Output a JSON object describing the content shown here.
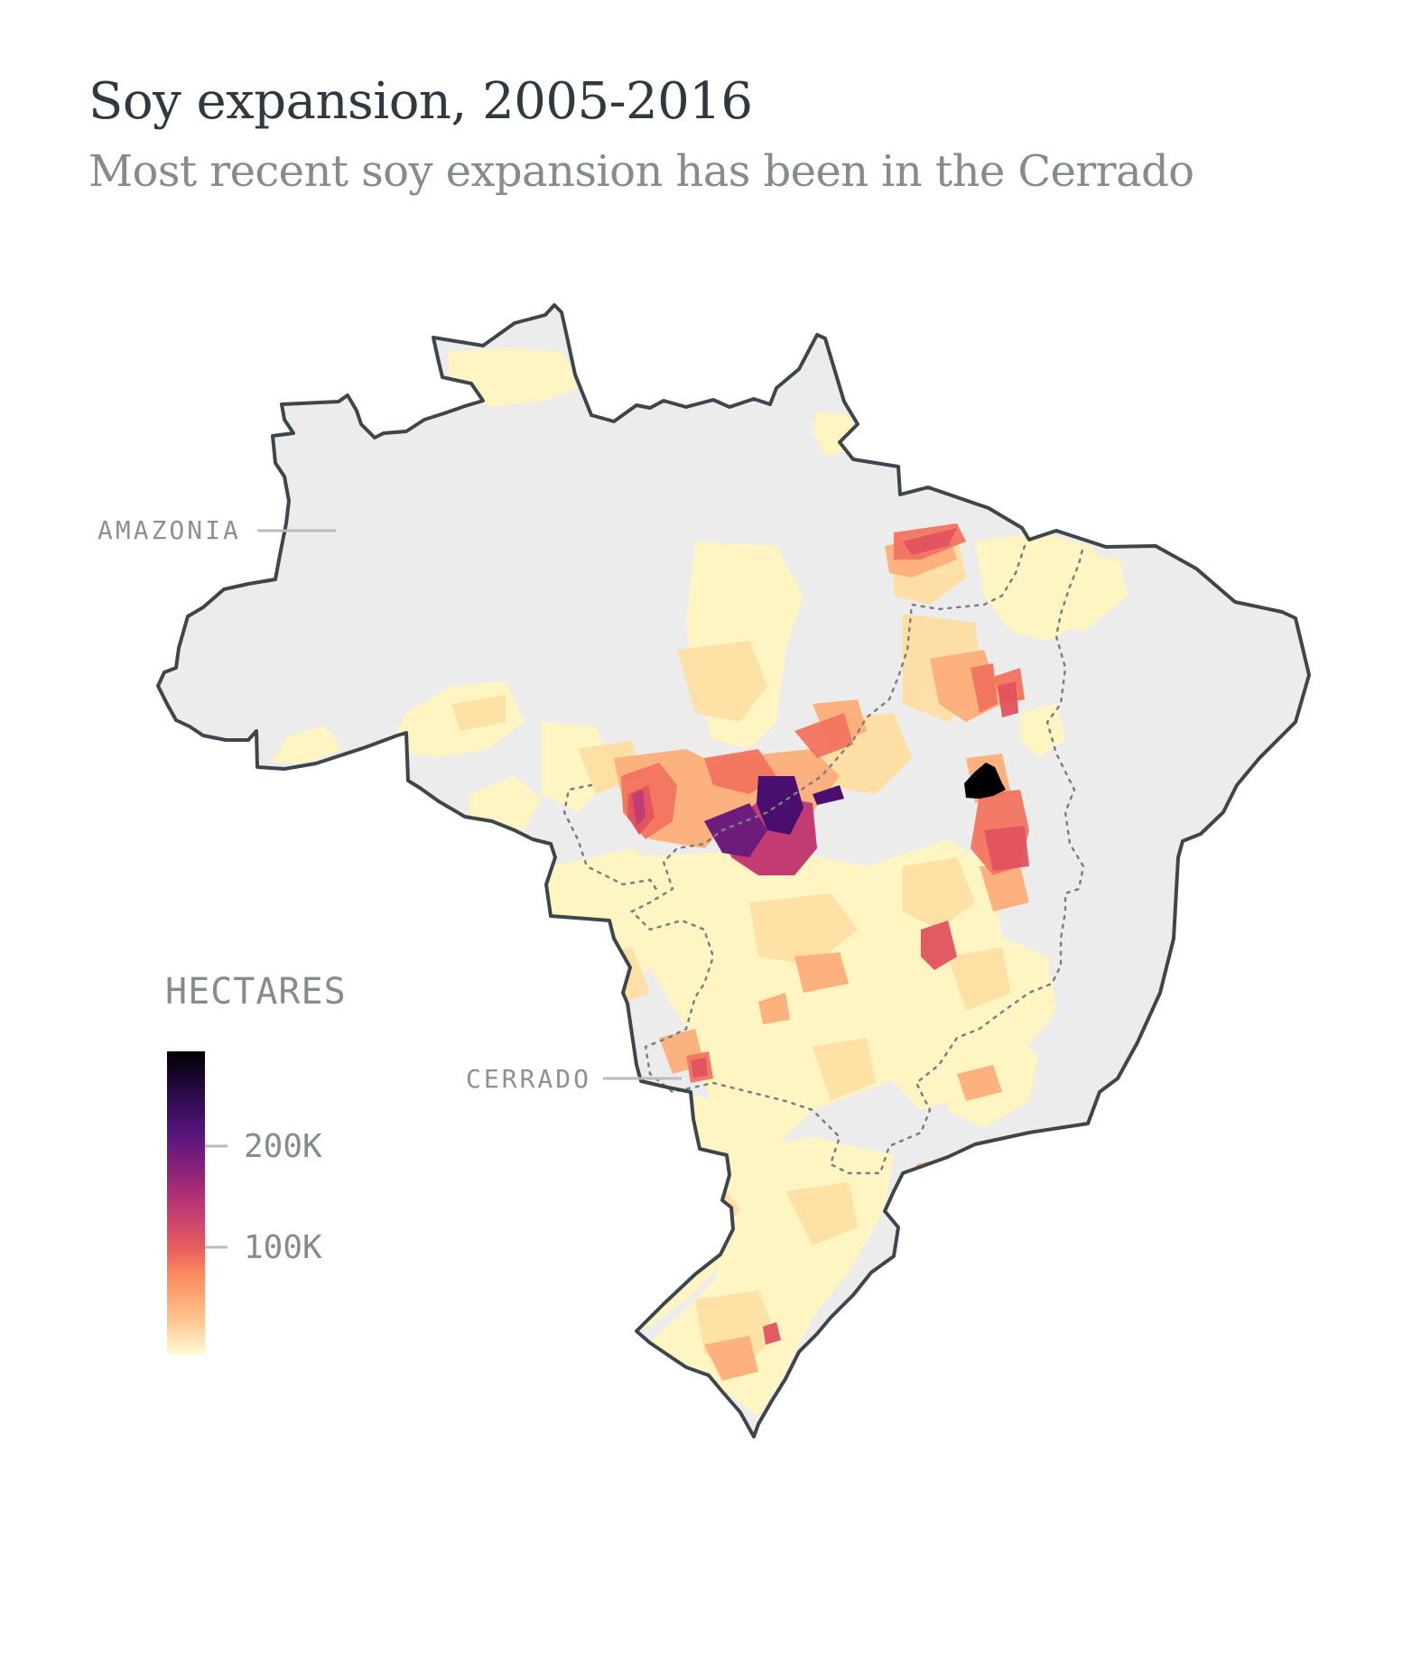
{
  "header": {
    "title": "Soy expansion, 2005-2016",
    "subtitle": "Most recent soy expansion has been in the Cerrado"
  },
  "map": {
    "country": "Brazil",
    "biome_labels": [
      {
        "key": "amazonia",
        "text": "AMAZONIA"
      },
      {
        "key": "cerrado",
        "text": "CERRADO"
      }
    ],
    "colors": {
      "land": "#ececec",
      "border": "#3d464b",
      "biome_boundary": "#7a7f83",
      "label": "#8a9093"
    }
  },
  "legend": {
    "title": "HECTARES",
    "unit": "hectares",
    "ticks": [
      {
        "value": 200000,
        "label": "200K"
      },
      {
        "value": 100000,
        "label": "100K"
      }
    ],
    "range": [
      0,
      300000
    ],
    "color_scale": [
      "#fffbd6",
      "#fec28c",
      "#fb8b5f",
      "#e65b5d",
      "#c03a73",
      "#8f2379",
      "#5a1680",
      "#2a0b4a",
      "#000000"
    ]
  }
}
